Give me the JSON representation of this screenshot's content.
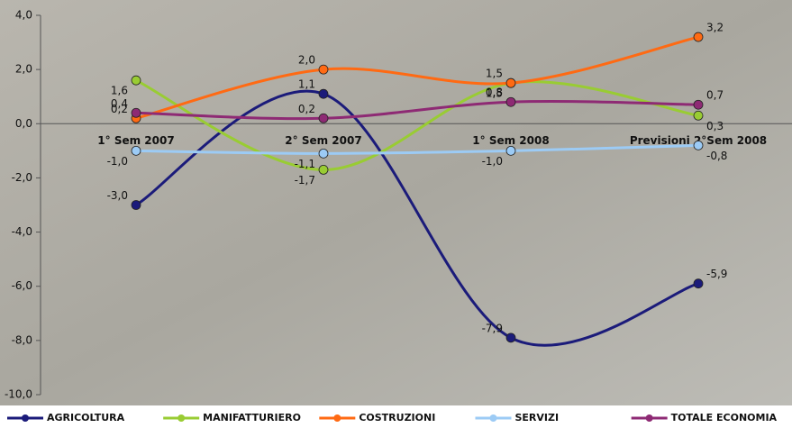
{
  "chart_data": {
    "type": "line",
    "categories": [
      "1° Sem 2007",
      "2° Sem 2007",
      "1° Sem 2008",
      "Previsioni 2°Sem 2008"
    ],
    "series": [
      {
        "name": "AGRICOLTURA",
        "color": "#1b1b7a",
        "values": [
          -3.0,
          1.1,
          -7.9,
          -5.9
        ],
        "value_labels": [
          "-3,0",
          "1,1",
          "-7,9",
          "-5,9"
        ]
      },
      {
        "name": "MANIFATTURIERO",
        "color": "#99cc33",
        "values": [
          1.6,
          -1.7,
          1.5,
          0.3
        ],
        "value_labels": [
          "1,6",
          "-1,7",
          "1,5",
          "0,3"
        ]
      },
      {
        "name": "COSTRUZIONI",
        "color": "#ff6a13",
        "values": [
          0.2,
          2.0,
          1.5,
          3.2
        ],
        "value_labels": [
          "0,2",
          "2,0",
          "1,5",
          "3,2"
        ]
      },
      {
        "name": "SERVIZI",
        "color": "#9ccbf5",
        "values": [
          -1.0,
          -1.1,
          -1.0,
          -0.8
        ],
        "value_labels": [
          "-1,0",
          "-1,1",
          "-1,0",
          "-0,8"
        ]
      },
      {
        "name": "TOTALE ECONOMIA",
        "color": "#8e2a74",
        "values": [
          0.4,
          0.2,
          0.8,
          0.7
        ],
        "value_labels": [
          "0,4",
          "0,2",
          "0,8",
          "0,7"
        ]
      }
    ],
    "ylim": [
      -10,
      4
    ],
    "yticks": [
      {
        "value": -10,
        "label": "-10,0"
      },
      {
        "value": -8,
        "label": "-8,0"
      },
      {
        "value": -6,
        "label": "-6,0"
      },
      {
        "value": -4,
        "label": "-4,0"
      },
      {
        "value": -2,
        "label": "-2,0"
      },
      {
        "value": 0,
        "label": "0,0"
      },
      {
        "value": 2,
        "label": "2,0"
      },
      {
        "value": 4,
        "label": "4,0"
      }
    ],
    "legend": "bottom"
  }
}
